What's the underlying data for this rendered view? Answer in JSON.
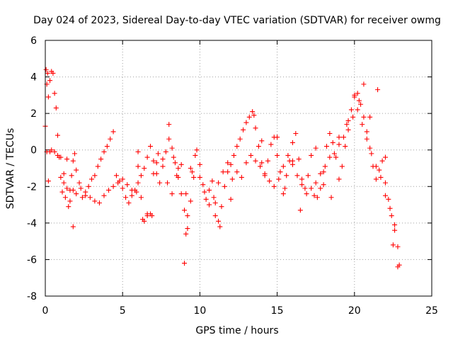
{
  "chart_data": {
    "type": "scatter",
    "title": "Day 024 of 2023, Sidereal Day-to-day VTEC variation (SDTVAR) for receiver owmg",
    "xlabel": "GPS time / hours",
    "ylabel": "SDTVAR / TECUs",
    "xlim": [
      0,
      25
    ],
    "ylim": [
      -8,
      6
    ],
    "xticks": [
      0,
      5,
      10,
      15,
      20,
      25
    ],
    "yticks": [
      -8,
      -6,
      -4,
      -2,
      0,
      2,
      4,
      6
    ],
    "grid": true,
    "marker": "+",
    "color": "#ff0000",
    "series": [
      {
        "name": "SDTVAR",
        "x": [
          0.0,
          0.05,
          0.1,
          0.15,
          0.2,
          0.3,
          0.4,
          0.5,
          0.6,
          0.7,
          0.8,
          0.9,
          1.0,
          1.1,
          1.2,
          1.3,
          1.4,
          1.5,
          1.6,
          1.7,
          1.8,
          1.9,
          2.0,
          2.2,
          2.4,
          2.6,
          2.8,
          3.0,
          3.2,
          3.4,
          3.6,
          3.8,
          4.0,
          4.2,
          4.4,
          4.6,
          4.8,
          5.0,
          5.2,
          5.4,
          5.6,
          5.8,
          6.0,
          6.2,
          6.4,
          6.6,
          6.8,
          7.0,
          7.2,
          7.4,
          7.6,
          7.8,
          8.0,
          8.2,
          8.4,
          8.6,
          8.8,
          9.0,
          9.1,
          9.2,
          9.4,
          9.6,
          9.8,
          10.0,
          10.2,
          10.4,
          10.6,
          10.8,
          11.0,
          11.2,
          11.4,
          11.6,
          11.8,
          12.0,
          12.2,
          12.4,
          12.6,
          12.8,
          13.0,
          13.2,
          13.4,
          13.6,
          13.8,
          14.0,
          14.2,
          14.4,
          14.6,
          14.8,
          15.0,
          15.2,
          15.4,
          15.6,
          15.8,
          16.0,
          16.2,
          16.4,
          16.6,
          16.8,
          17.0,
          17.2,
          17.4,
          17.6,
          17.8,
          18.0,
          18.2,
          18.4,
          18.6,
          18.8,
          19.0,
          19.2,
          19.4,
          19.6,
          19.8,
          20.0,
          20.2,
          20.4,
          20.6,
          20.8,
          21.0,
          21.2,
          21.4,
          21.6,
          21.8,
          22.0,
          22.2,
          22.4,
          22.6,
          22.8,
          22.9
        ],
        "y": [
          1.3,
          4.4,
          3.6,
          4.2,
          2.9,
          3.8,
          4.3,
          4.2,
          3.1,
          2.3,
          0.8,
          -0.4,
          -1.5,
          -2.3,
          -1.8,
          -2.6,
          -2.1,
          -3.1,
          -2.2,
          -1.4,
          -0.6,
          -0.2,
          -1.1,
          -1.8,
          -2.6,
          -2.3,
          -2.0,
          -1.6,
          -1.4,
          -0.9,
          -0.5,
          -0.1,
          0.2,
          0.6,
          1.0,
          -1.4,
          -1.7,
          -2.1,
          -2.6,
          -2.9,
          -2.5,
          -2.2,
          -1.8,
          -1.4,
          -1.0,
          -0.4,
          0.2,
          -0.6,
          -1.3,
          -1.8,
          -0.9,
          -0.1,
          0.6,
          0.1,
          -0.7,
          -1.5,
          -2.4,
          -3.3,
          -4.6,
          -3.6,
          -2.8,
          -1.5,
          0.0,
          -0.8,
          -1.9,
          -2.7,
          -2.2,
          -1.7,
          -2.9,
          -3.9,
          -3.1,
          -2.0,
          -1.2,
          -0.8,
          -0.3,
          0.2,
          0.6,
          1.1,
          1.5,
          1.8,
          2.1,
          1.2,
          0.2,
          -0.7,
          -1.4,
          -0.6,
          0.3,
          0.7,
          -0.3,
          -1.2,
          -2.4,
          -1.4,
          -0.6,
          0.4,
          0.9,
          -0.5,
          -1.6,
          -2.1,
          -1.4,
          -0.3,
          -2.5,
          -2.6,
          -2.1,
          -1.2,
          0.2,
          0.9,
          0.4,
          -0.4,
          -1.6,
          -0.9,
          0.2,
          1.1,
          2.2,
          2.9,
          3.1,
          2.5,
          1.8,
          1.0,
          0.1,
          -0.9,
          -1.6,
          -1.1,
          -0.6,
          -1.8,
          -2.7,
          -3.6,
          -4.4,
          -5.3,
          -6.3
        ]
      },
      {
        "name": "SDTVAR",
        "x": [
          0.1,
          0.2,
          0.3,
          0.4,
          0.6,
          0.8,
          1.0,
          1.2,
          1.4,
          1.6,
          1.8,
          2.0,
          2.3,
          2.6,
          2.9,
          3.2,
          3.5,
          3.8,
          4.1,
          4.4,
          4.7,
          5.0,
          5.3,
          5.6,
          5.9,
          6.0,
          6.2,
          6.4,
          6.6,
          6.8,
          7.0,
          7.3,
          7.6,
          7.9,
          8.2,
          8.5,
          8.8,
          9.1,
          9.4,
          9.7,
          10.0,
          10.3,
          10.6,
          10.9,
          11.2,
          11.5,
          11.8,
          12.1,
          12.4,
          12.7,
          13.0,
          13.3,
          13.6,
          13.9,
          14.2,
          14.5,
          14.8,
          15.1,
          15.4,
          15.7,
          16.0,
          16.3,
          16.6,
          16.9,
          17.2,
          17.5,
          17.8,
          18.1,
          18.4,
          18.7,
          19.0,
          19.3,
          19.6,
          19.9,
          20.2,
          20.5,
          20.8,
          21.1,
          21.4,
          21.7,
          22.0,
          22.3,
          22.6,
          22.8
        ],
        "y": [
          -0.1,
          -1.7,
          -0.1,
          0.0,
          -0.1,
          -0.3,
          -0.4,
          -1.3,
          -0.5,
          -2.8,
          -2.2,
          -2.4,
          -2.1,
          -2.5,
          -2.6,
          -2.8,
          -2.9,
          -2.5,
          -2.2,
          -2.0,
          -1.8,
          -1.6,
          -1.9,
          -2.2,
          -2.3,
          -0.1,
          -2.6,
          -3.9,
          -3.6,
          -3.5,
          -1.3,
          -0.2,
          -0.5,
          -1.8,
          -2.4,
          -1.4,
          -0.8,
          -2.4,
          -1.0,
          -0.3,
          -1.5,
          -2.3,
          -3.0,
          -2.6,
          -1.8,
          -1.2,
          -0.7,
          -1.6,
          -1.2,
          -1.5,
          -0.7,
          -0.3,
          -0.6,
          -0.9,
          -1.3,
          -1.7,
          -2.0,
          -1.6,
          -0.9,
          -0.3,
          -0.8,
          -1.4,
          -1.9,
          -2.4,
          -2.1,
          -1.8,
          -1.3,
          -0.9,
          -0.4,
          -0.2,
          0.3,
          0.7,
          1.6,
          1.8,
          2.2,
          1.4,
          0.6,
          -0.2,
          -0.9,
          -1.5,
          -2.5,
          -3.2,
          -4.1,
          -6.4
        ]
      },
      {
        "name": "SDTVAR",
        "x": [
          1.8,
          6.0,
          6.3,
          6.6,
          6.9,
          7.2,
          8.0,
          8.3,
          8.6,
          9.0,
          9.2,
          9.5,
          11.0,
          11.3,
          12.0,
          13.5,
          14.0,
          15.0,
          15.5,
          16.0,
          16.5,
          17.5,
          18.0,
          18.5,
          19.0,
          19.5,
          20.0,
          20.3,
          20.6,
          21.0,
          21.5,
          22.0,
          22.5
        ],
        "y": [
          -4.2,
          -0.9,
          -3.8,
          -3.5,
          -3.6,
          -0.7,
          1.4,
          -0.4,
          -1.0,
          -6.2,
          -4.3,
          -1.2,
          -3.6,
          -4.2,
          -2.7,
          1.9,
          0.5,
          0.7,
          -2.1,
          -0.6,
          -3.3,
          0.1,
          -1.9,
          -2.6,
          0.7,
          1.4,
          3.0,
          2.7,
          3.6,
          1.8,
          3.3,
          -0.4,
          -5.2
        ]
      }
    ]
  }
}
